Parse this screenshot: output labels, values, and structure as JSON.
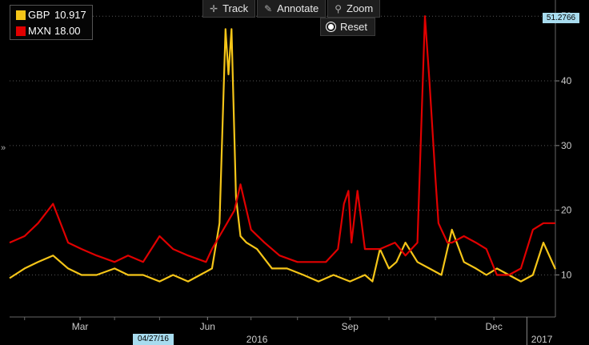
{
  "toolbar": {
    "track_label": "Track",
    "annotate_label": "Annotate",
    "zoom_label": "Zoom",
    "reset_label": "Reset"
  },
  "legend": [
    {
      "name": "GBP",
      "value": "10.917",
      "color": "#f5c518"
    },
    {
      "name": "MXN",
      "value": "18.00",
      "color": "#e00000"
    }
  ],
  "last_value_tag": "51.2766",
  "cursor_date_tag": "04/27/16",
  "side_arrow": "»",
  "chart_data": {
    "type": "line",
    "x_range": [
      "2016-01-22",
      "2017-01-20"
    ],
    "ylim": [
      3.5,
      52.5
    ],
    "y_ticks": [
      10,
      20,
      30,
      40,
      50
    ],
    "x_tick_labels": [
      "Mar",
      "Jun",
      "Sep",
      "Dec"
    ],
    "year_labels": [
      "2016",
      "2017"
    ],
    "grid": "horizontal dotted",
    "legend_position": "top-left",
    "series": [
      {
        "name": "GBP",
        "color": "#f5c518",
        "x": [
          "2016-01-22",
          "2016-02-01",
          "2016-02-10",
          "2016-02-20",
          "2016-03-01",
          "2016-03-10",
          "2016-03-20",
          "2016-04-01",
          "2016-04-10",
          "2016-04-20",
          "2016-05-01",
          "2016-05-10",
          "2016-05-20",
          "2016-05-28",
          "2016-06-05",
          "2016-06-10",
          "2016-06-14",
          "2016-06-16",
          "2016-06-18",
          "2016-06-21",
          "2016-06-24",
          "2016-06-28",
          "2016-07-05",
          "2016-07-15",
          "2016-07-25",
          "2016-08-05",
          "2016-08-15",
          "2016-08-25",
          "2016-09-05",
          "2016-09-15",
          "2016-09-20",
          "2016-09-25",
          "2016-10-01",
          "2016-10-06",
          "2016-10-12",
          "2016-10-20",
          "2016-10-28",
          "2016-11-05",
          "2016-11-12",
          "2016-11-20",
          "2016-11-28",
          "2016-12-05",
          "2016-12-12",
          "2016-12-20",
          "2016-12-28",
          "2017-01-05",
          "2017-01-12",
          "2017-01-20"
        ],
        "values": [
          9.5,
          11,
          12,
          13,
          11,
          10,
          10,
          11,
          10,
          10,
          9,
          10,
          9,
          10,
          11,
          18,
          48,
          41,
          48,
          22,
          16,
          15,
          14,
          11,
          11,
          10,
          9,
          10,
          9,
          10,
          9,
          14,
          11,
          12,
          15,
          12,
          11,
          10,
          17,
          12,
          11,
          10,
          11,
          10,
          9,
          10,
          15,
          10.9
        ]
      },
      {
        "name": "MXN",
        "color": "#e00000",
        "x": [
          "2016-01-22",
          "2016-02-01",
          "2016-02-10",
          "2016-02-20",
          "2016-03-01",
          "2016-03-10",
          "2016-03-20",
          "2016-04-01",
          "2016-04-10",
          "2016-04-20",
          "2016-05-01",
          "2016-05-10",
          "2016-05-20",
          "2016-06-01",
          "2016-06-05",
          "2016-06-10",
          "2016-06-15",
          "2016-06-20",
          "2016-06-24",
          "2016-07-01",
          "2016-07-10",
          "2016-07-20",
          "2016-08-01",
          "2016-08-10",
          "2016-08-20",
          "2016-08-28",
          "2016-09-01",
          "2016-09-04",
          "2016-09-06",
          "2016-09-10",
          "2016-09-15",
          "2016-09-25",
          "2016-10-05",
          "2016-10-12",
          "2016-10-20",
          "2016-10-25",
          "2016-10-28",
          "2016-11-01",
          "2016-11-03",
          "2016-11-05",
          "2016-11-07",
          "2016-11-09",
          "2016-11-12",
          "2016-11-20",
          "2016-11-28",
          "2016-12-05",
          "2016-12-12",
          "2016-12-20",
          "2016-12-28",
          "2017-01-05",
          "2017-01-12",
          "2017-01-20"
        ],
        "values": [
          15,
          16,
          18,
          21,
          15,
          14,
          13,
          12,
          13,
          12,
          16,
          14,
          13,
          12,
          14,
          16,
          18,
          20,
          24,
          17,
          15,
          13,
          12,
          12,
          12,
          14,
          21,
          23,
          15,
          23,
          14,
          14,
          15,
          13,
          15,
          50,
          40,
          25,
          18,
          17,
          16,
          15,
          15,
          16,
          15,
          14,
          10,
          10,
          11,
          17,
          18,
          18
        ]
      }
    ]
  }
}
